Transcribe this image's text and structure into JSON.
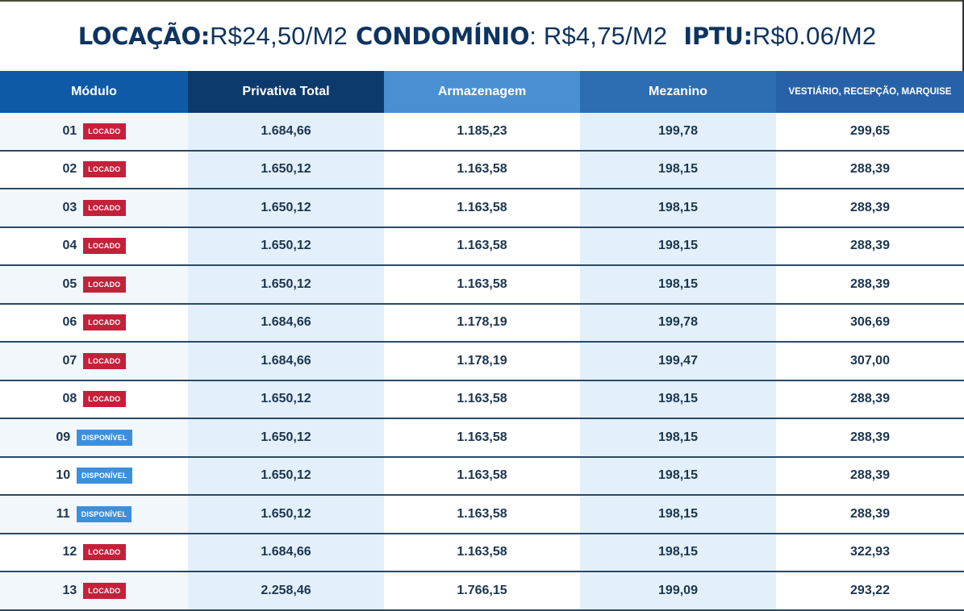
{
  "header": {
    "locacao_label": "LOCAÇÃO:",
    "locacao_value": "R$24,50/M2",
    "condominio_label": "CONDOMÍNIO",
    "condominio_value": ": R$4,75/M2",
    "iptu_label": "IPTU:",
    "iptu_value": "R$0.06/M2"
  },
  "table": {
    "columns": [
      "Módulo",
      "Privativa Total",
      "Armazenagem",
      "Mezanino",
      "VESTIÁRIO, RECEPÇÃO, MARQUISE"
    ],
    "colors": {
      "locado": "#c5203a",
      "disponivel": "#3d8fdc",
      "text": "#1c3550"
    },
    "rows": [
      {
        "modulo": "01",
        "status": "LOCADO",
        "privativa": "1.684,66",
        "armazenagem": "1.185,23",
        "mezanino": "199,78",
        "vestiario": "299,65"
      },
      {
        "modulo": "02",
        "status": "LOCADO",
        "privativa": "1.650,12",
        "armazenagem": "1.163,58",
        "mezanino": "198,15",
        "vestiario": "288,39"
      },
      {
        "modulo": "03",
        "status": "LOCADO",
        "privativa": "1.650,12",
        "armazenagem": "1.163,58",
        "mezanino": "198,15",
        "vestiario": "288,39"
      },
      {
        "modulo": "04",
        "status": "LOCADO",
        "privativa": "1.650,12",
        "armazenagem": "1.163,58",
        "mezanino": "198,15",
        "vestiario": "288,39"
      },
      {
        "modulo": "05",
        "status": "LOCADO",
        "privativa": "1.650,12",
        "armazenagem": "1.163,58",
        "mezanino": "198,15",
        "vestiario": "288,39"
      },
      {
        "modulo": "06",
        "status": "LOCADO",
        "privativa": "1.684,66",
        "armazenagem": "1.178,19",
        "mezanino": "199,78",
        "vestiario": "306,69"
      },
      {
        "modulo": "07",
        "status": "LOCADO",
        "privativa": "1.684,66",
        "armazenagem": "1.178,19",
        "mezanino": "199,47",
        "vestiario": "307,00"
      },
      {
        "modulo": "08",
        "status": "LOCADO",
        "privativa": "1.650,12",
        "armazenagem": "1.163,58",
        "mezanino": "198,15",
        "vestiario": "288,39"
      },
      {
        "modulo": "09",
        "status": "DISPONÍVEL",
        "privativa": "1.650,12",
        "armazenagem": "1.163,58",
        "mezanino": "198,15",
        "vestiario": "288,39"
      },
      {
        "modulo": "10",
        "status": "DISPONÍVEL",
        "privativa": "1.650,12",
        "armazenagem": "1.163,58",
        "mezanino": "198,15",
        "vestiario": "288,39"
      },
      {
        "modulo": "11",
        "status": "DISPONÍVEL",
        "privativa": "1.650,12",
        "armazenagem": "1.163,58",
        "mezanino": "198,15",
        "vestiario": "288,39"
      },
      {
        "modulo": "12",
        "status": "LOCADO",
        "privativa": "1.684,66",
        "armazenagem": "1.163,58",
        "mezanino": "198,15",
        "vestiario": "322,93"
      },
      {
        "modulo": "13",
        "status": "LOCADO",
        "privativa": "2.258,46",
        "armazenagem": "1.766,15",
        "mezanino": "199,09",
        "vestiario": "293,22"
      }
    ]
  }
}
